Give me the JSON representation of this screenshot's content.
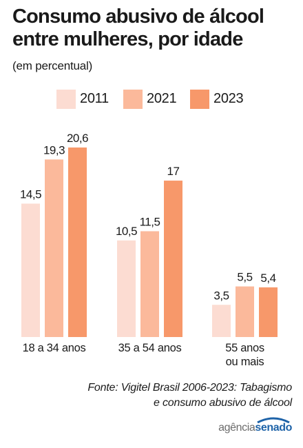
{
  "title": "Consumo abusivo de álcool entre mulheres, por idade",
  "subtitle": "(em percentual)",
  "legend": [
    {
      "label": "2011",
      "color": "#fcdcd2"
    },
    {
      "label": "2021",
      "color": "#fbb99b"
    },
    {
      "label": "2023",
      "color": "#f7986a"
    }
  ],
  "chart_data": {
    "type": "bar",
    "categories": [
      "18 a 34 anos",
      "35 a 54 anos",
      "55 anos ou mais"
    ],
    "category_lines": [
      [
        "18 a 34 anos"
      ],
      [
        "35 a 54 anos"
      ],
      [
        "55 anos",
        "ou mais"
      ]
    ],
    "series": [
      {
        "name": "2011",
        "values": [
          14.5,
          10.5,
          3.5
        ],
        "labels": [
          "14,5",
          "10,5",
          "3,5"
        ],
        "color": "#fcdcd2"
      },
      {
        "name": "2021",
        "values": [
          19.3,
          11.5,
          5.5
        ],
        "labels": [
          "19,3",
          "11,5",
          "5,5"
        ],
        "color": "#fbb99b"
      },
      {
        "name": "2023",
        "values": [
          20.6,
          17,
          5.4
        ],
        "labels": [
          "20,6",
          "17",
          "5,4"
        ],
        "color": "#f7986a"
      }
    ],
    "title": "Consumo abusivo de álcool entre mulheres, por idade",
    "ylabel": "",
    "ylim": [
      0,
      20.6
    ],
    "grid": false,
    "legend_position": "top"
  },
  "source": {
    "line1": "Fonte: Vigitel Brasil 2006-2023: Tabagismo",
    "line2": "e consumo abusivo de álcool"
  },
  "logo": {
    "part1": "agência",
    "part2": "senado",
    "color": "#1e63a8"
  }
}
